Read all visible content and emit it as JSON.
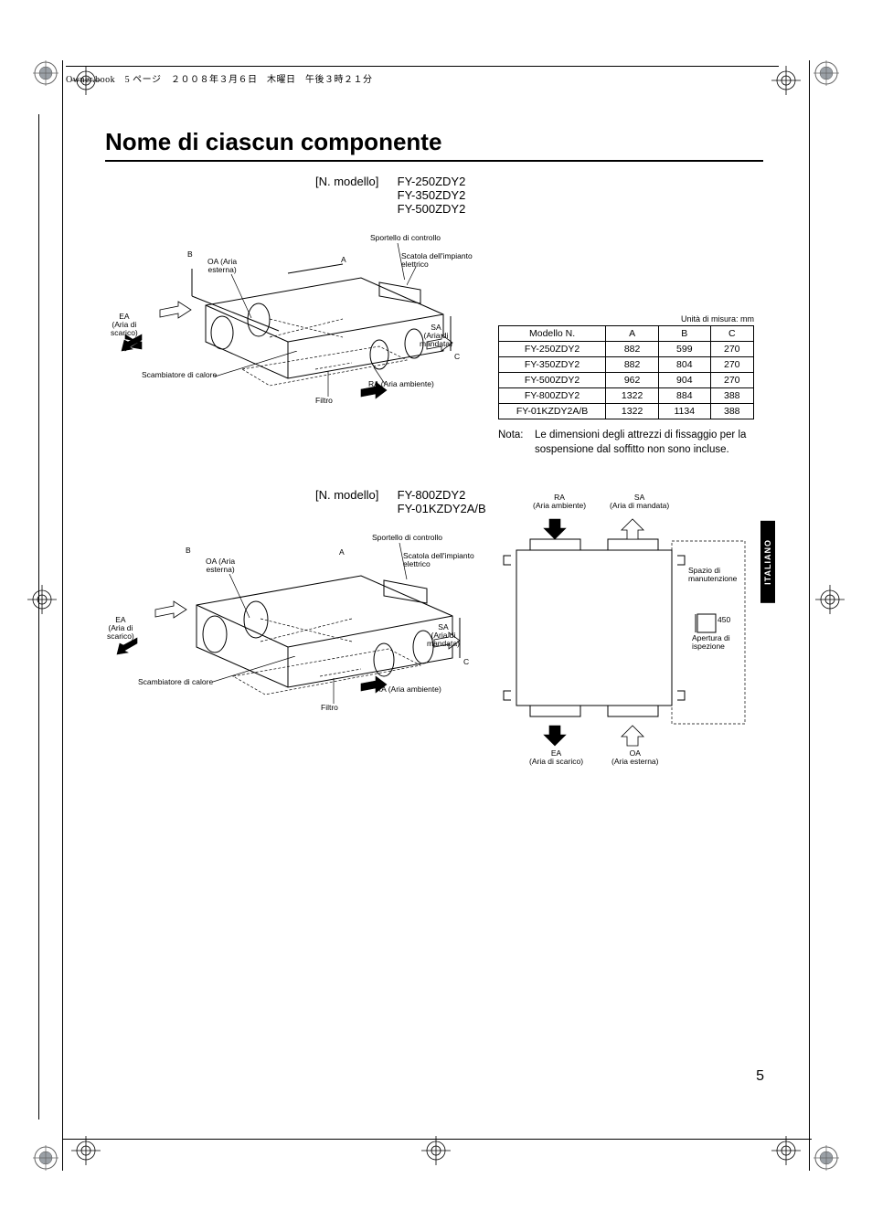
{
  "header_text": "Owner.book　5 ページ　２００８年３月６日　木曜日　午後３時２１分",
  "title": "Nome di ciascun componente",
  "model_label": "[N. modello]",
  "block1_models": [
    "FY-250ZDY2",
    "FY-350ZDY2",
    "FY-500ZDY2"
  ],
  "block2_models": [
    "FY-800ZDY2",
    "FY-01KZDY2A/B"
  ],
  "unit_label": "Unità di misura: mm",
  "table": {
    "columns": [
      "Modello N.",
      "A",
      "B",
      "C"
    ],
    "rows": [
      [
        "FY-250ZDY2",
        "882",
        "599",
        "270"
      ],
      [
        "FY-350ZDY2",
        "882",
        "804",
        "270"
      ],
      [
        "FY-500ZDY2",
        "962",
        "904",
        "270"
      ],
      [
        "FY-800ZDY2",
        "1322",
        "884",
        "388"
      ],
      [
        "FY-01KZDY2A/B",
        "1322",
        "1134",
        "388"
      ]
    ]
  },
  "note_label": "Nota:",
  "note_body": "Le dimensioni degli attrezzi di fissaggio per la sospensione dal soffitto non sono incluse.",
  "lang_tab": "ITALIANO",
  "page_number": "5",
  "diag_labels": {
    "sportello": "Sportello di controllo",
    "scatola": "Scatola dell'impianto\nelettrico",
    "oa": "OA (Aria\nesterna)",
    "ea": "EA\n(Aria di\nscarico)",
    "sa": "SA\n(Aria di\nmandata)",
    "ra": "RA (Aria ambiente)",
    "filtro": "Filtro",
    "scambiatore": "Scambiatore di calore",
    "A": "A",
    "B": "B",
    "C": "C"
  },
  "plan_labels": {
    "ra_top": "RA\n(Aria ambiente)",
    "sa_top": "SA\n(Aria di mandata)",
    "ea_bot": "EA\n(Aria di scarico)",
    "oa_bot": "OA\n(Aria esterna)",
    "spazio": "Spazio di\nmanutenzione",
    "apertura": "Apertura di\nispezione",
    "apertura_dim": "450"
  }
}
